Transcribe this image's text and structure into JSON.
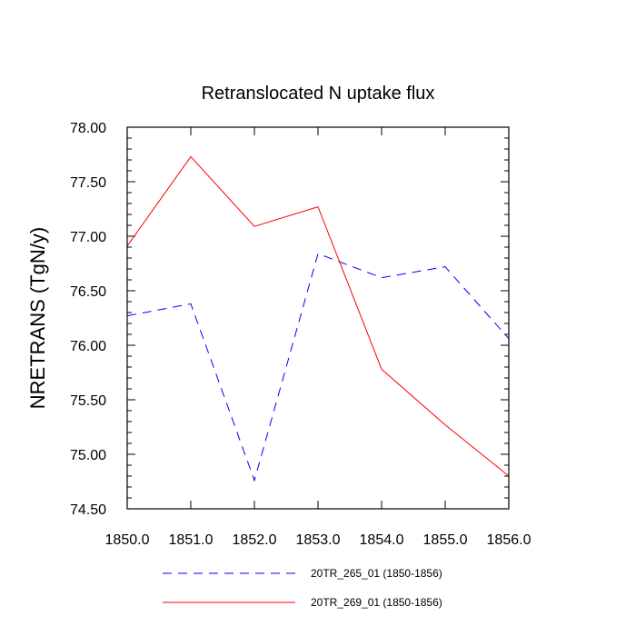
{
  "chart_data": {
    "type": "line",
    "title": "Retranslocated N uptake flux",
    "xlabel": "",
    "ylabel": "NRETRANS  (TgN/y)",
    "xlim": [
      1850.0,
      1856.0
    ],
    "ylim": [
      74.5,
      78.0
    ],
    "x": [
      1850.0,
      1851.0,
      1852.0,
      1853.0,
      1854.0,
      1855.0,
      1856.0
    ],
    "x_tick_labels": [
      "1850.0",
      "1851.0",
      "1852.0",
      "1853.0",
      "1854.0",
      "1855.0",
      "1856.0"
    ],
    "y_ticks": [
      74.5,
      75.0,
      75.5,
      76.0,
      76.5,
      77.0,
      77.5,
      78.0
    ],
    "y_tick_labels": [
      "74.50",
      "75.00",
      "75.50",
      "76.00",
      "76.50",
      "77.00",
      "77.50",
      "78.00"
    ],
    "grid": false,
    "legend_position": "bottom",
    "series": [
      {
        "name": "20TR_265_01 (1850-1856)",
        "color": "#0000ff",
        "line_style": "dashed",
        "values": [
          76.27,
          76.38,
          74.76,
          76.84,
          76.62,
          76.72,
          76.06
        ]
      },
      {
        "name": "20TR_269_01 (1850-1856)",
        "color": "#ff0000",
        "line_style": "solid",
        "values": [
          76.91,
          77.73,
          77.09,
          77.27,
          75.78,
          75.27,
          74.8
        ]
      }
    ]
  }
}
